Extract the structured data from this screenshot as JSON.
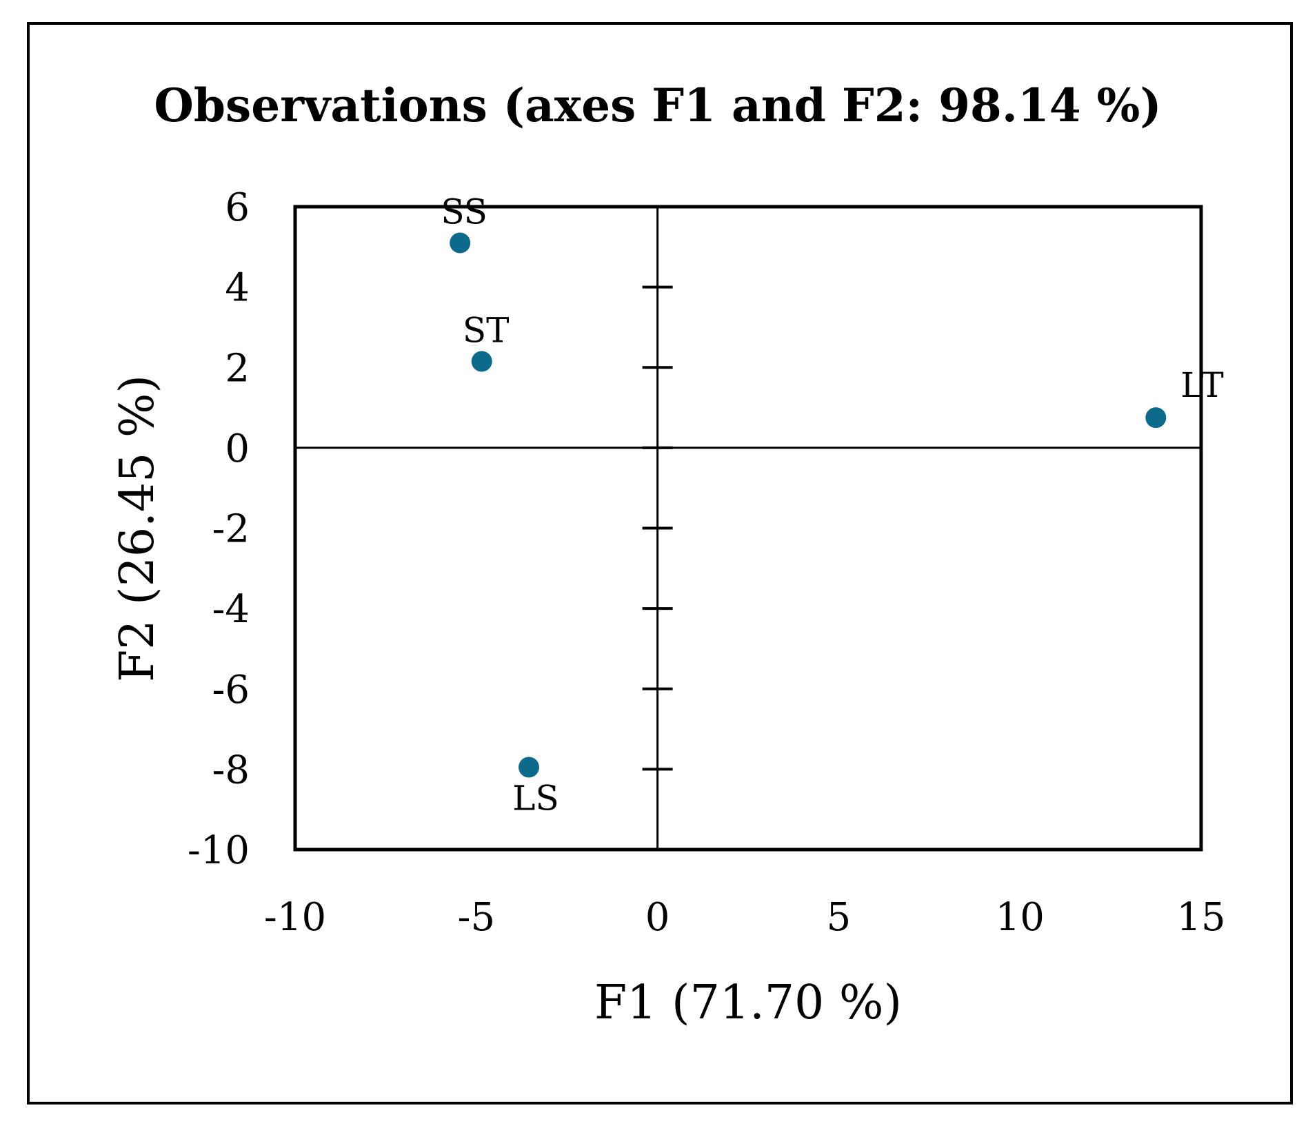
{
  "chart_data": {
    "type": "scatter",
    "title": "Observations (axes F1 and F2: 98.14 %)",
    "xlabel": "F1 (71.70 %)",
    "ylabel": "F2 (26.45 %)",
    "xlim": [
      -10,
      15
    ],
    "ylim": [
      -10,
      6
    ],
    "xticks": [
      -10,
      -5,
      0,
      5,
      10,
      15
    ],
    "yticks": [
      6,
      4,
      2,
      0,
      -2,
      -4,
      -6,
      -8,
      -10
    ],
    "xtick_labels": [
      "-10",
      "-5",
      "0",
      "5",
      "10",
      "15"
    ],
    "ytick_labels": [
      "6",
      "4",
      "2",
      "0",
      "-2",
      "-4",
      "-6",
      "-8",
      "-10"
    ],
    "grid": false,
    "legend": "none",
    "point_color": "#0e6a8a",
    "series": [
      {
        "name": "Observations",
        "points": [
          {
            "label": "SS",
            "x": -5.45,
            "y": 5.1,
            "label_pos": "above"
          },
          {
            "label": "ST",
            "x": -4.85,
            "y": 2.15,
            "label_pos": "above"
          },
          {
            "label": "LT",
            "x": 13.75,
            "y": 0.75,
            "label_pos": "above-right"
          },
          {
            "label": "LS",
            "x": -3.55,
            "y": -7.95,
            "label_pos": "below"
          }
        ]
      }
    ]
  }
}
